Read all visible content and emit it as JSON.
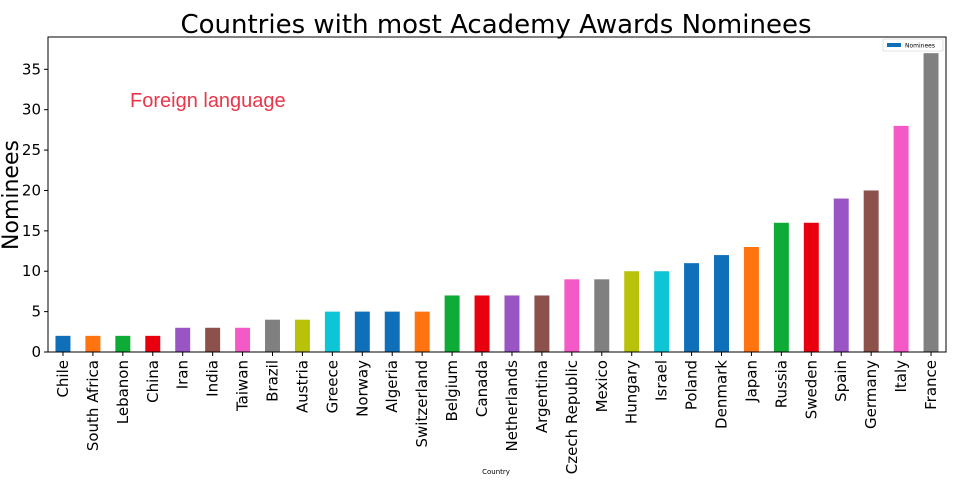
{
  "chart_data": {
    "type": "bar",
    "title": "Countries with most Academy Awards Nominees",
    "xlabel": "Country",
    "ylabel": "Nominees",
    "ylim": [
      0,
      39
    ],
    "yticks": [
      0,
      5,
      10,
      15,
      20,
      25,
      30,
      35
    ],
    "legend": {
      "placement": "top-right",
      "entries": [
        "Nominees"
      ]
    },
    "annotation": "Foreign language",
    "categories": [
      "Chile",
      "South Africa",
      "Lebanon",
      "China",
      "Iran",
      "India",
      "Taiwan",
      "Brazil",
      "Austria",
      "Greece",
      "Norway",
      "Algeria",
      "Switzerland",
      "Belgium",
      "Canada",
      "Netherlands",
      "Argentina",
      "Czech Republic",
      "Mexico",
      "Hungary",
      "Israel",
      "Poland",
      "Denmark",
      "Japan",
      "Russia",
      "Sweden",
      "Spain",
      "Germany",
      "Italy",
      "France"
    ],
    "series": [
      {
        "name": "Nominees",
        "values": [
          2,
          2,
          2,
          2,
          3,
          3,
          3,
          4,
          4,
          5,
          5,
          5,
          5,
          7,
          7,
          7,
          7,
          9,
          9,
          10,
          10,
          11,
          12,
          13,
          16,
          16,
          19,
          20,
          28,
          37
        ]
      }
    ],
    "bar_colors": [
      "#0f6fb8",
      "#ff7410",
      "#0eab36",
      "#e8000e",
      "#9a55c5",
      "#8d514b",
      "#f45ac6",
      "#808080",
      "#b8c20a",
      "#0ec5d5",
      "#0f6fb8",
      "#0f6fb8",
      "#ff7410",
      "#0eab36",
      "#e8000e",
      "#9a55c5",
      "#8d514b",
      "#f45ac6",
      "#808080",
      "#b8c20a",
      "#0ec5d5",
      "#0f6fb8",
      "#0f6fb8",
      "#ff7410",
      "#0eab36",
      "#e8000e",
      "#9a55c5",
      "#8d514b",
      "#f45ac6",
      "#808080"
    ],
    "legend_color": "#0f6fb8",
    "annotation_color": "#e8364a"
  }
}
